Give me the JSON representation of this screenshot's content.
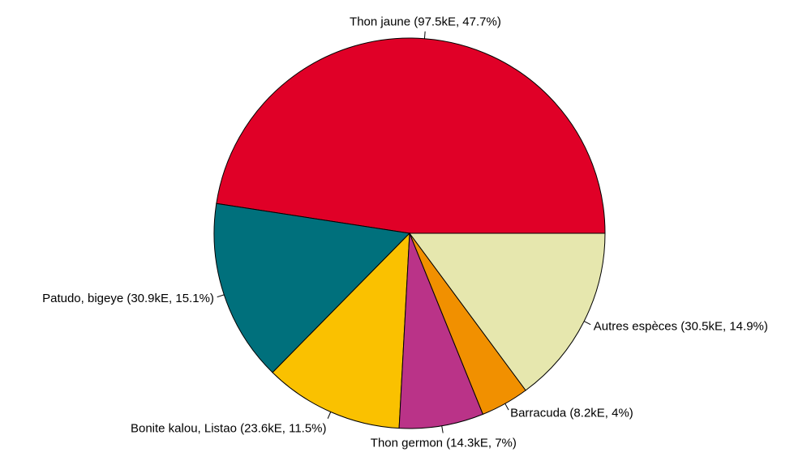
{
  "chart_data": {
    "type": "pie",
    "title": "",
    "start_angle_deg": 0,
    "direction": "counterclockwise",
    "slices": [
      {
        "name": "Thon jaune",
        "value": 97.5,
        "percent": 47.7,
        "label": "Thon jaune (97.5kE, 47.7%)",
        "color": "#E00027"
      },
      {
        "name": "Patudo, bigeye",
        "value": 30.9,
        "percent": 15.1,
        "label": "Patudo, bigeye (30.9kE, 15.1%)",
        "color": "#00707C"
      },
      {
        "name": "Bonite kalou, Listao",
        "value": 23.6,
        "percent": 11.5,
        "label": "Bonite kalou, Listao (23.6kE, 11.5%)",
        "color": "#FAC100"
      },
      {
        "name": "Thon germon",
        "value": 14.3,
        "percent": 7,
        "label": "Thon germon (14.3kE, 7%)",
        "color": "#BA3388"
      },
      {
        "name": "Barracuda",
        "value": 8.2,
        "percent": 4,
        "label": "Barracuda (8.2kE, 4%)",
        "color": "#F19000"
      },
      {
        "name": "Autres espèces",
        "value": 30.5,
        "percent": 14.9,
        "label": "Autres espèces (30.5kE, 14.9%)",
        "color": "#E6E7AE"
      }
    ]
  }
}
